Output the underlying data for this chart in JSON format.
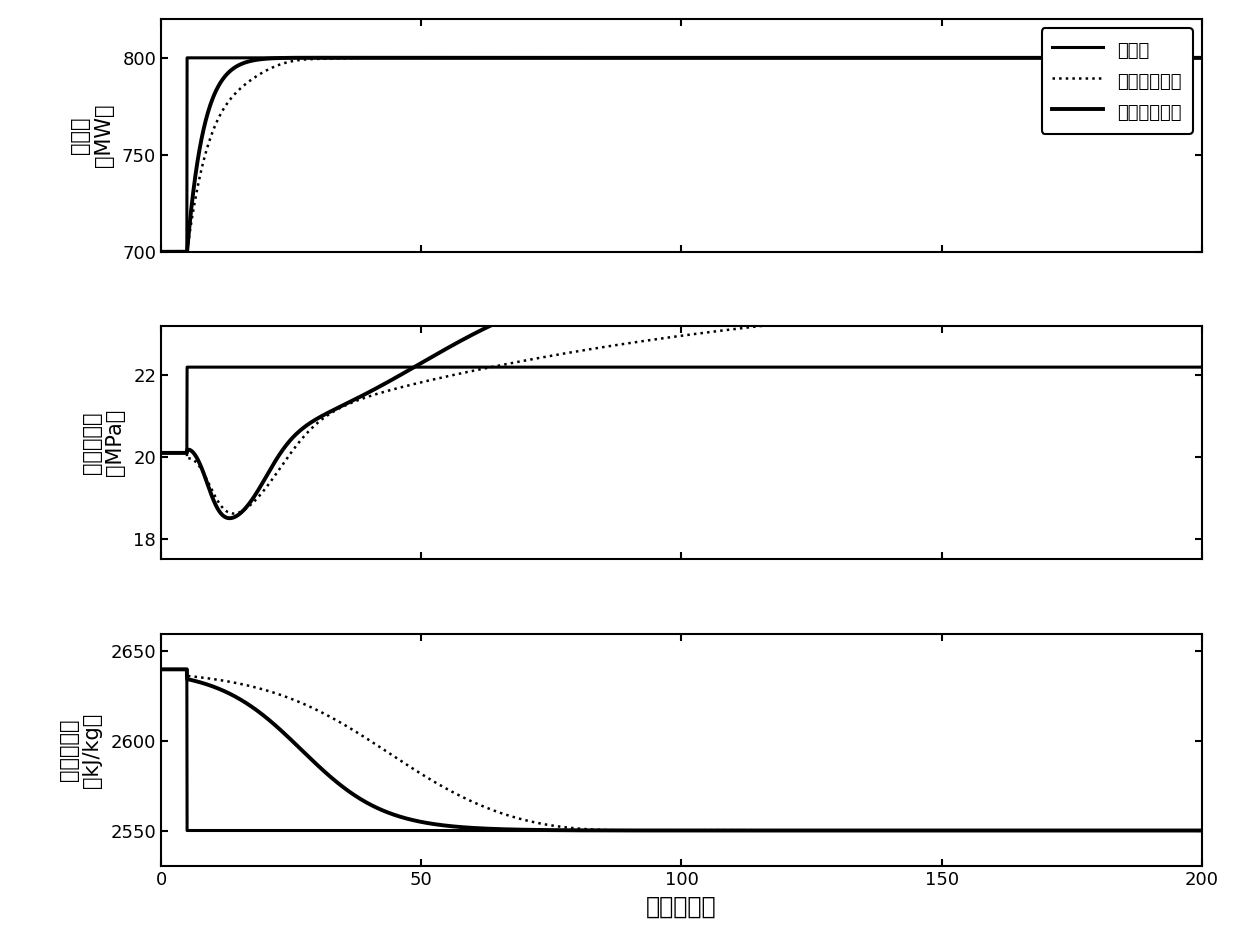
{
  "xlabel": "时间（秒）",
  "ylabel1": "电功率\n（MW）",
  "ylabel2": "主蔓汽压力\n（MPa）",
  "ylabel3": "中间点比熵\n（kJ/kg）",
  "legend_labels": [
    "设定值",
    "模型预测控制",
    "滑模预测控制"
  ],
  "xlim": [
    0,
    200
  ],
  "ylim1": [
    700,
    820
  ],
  "ylim2": [
    17.5,
    23.2
  ],
  "ylim3": [
    2530,
    2660
  ],
  "yticks1": [
    700,
    750,
    800
  ],
  "yticks2": [
    18,
    20,
    22
  ],
  "yticks3": [
    2550,
    2600,
    2650
  ],
  "xticks": [
    0,
    50,
    100,
    150,
    200
  ],
  "t_max": 200,
  "n_points": 4000,
  "background_color": "#ffffff",
  "line_color": "#000000",
  "lw_setpoint": 2.2,
  "lw_mpc": 1.8,
  "lw_smpc": 2.8,
  "font_size_label": 15,
  "font_size_tick": 13,
  "font_size_legend": 13,
  "step_time": 5.0
}
